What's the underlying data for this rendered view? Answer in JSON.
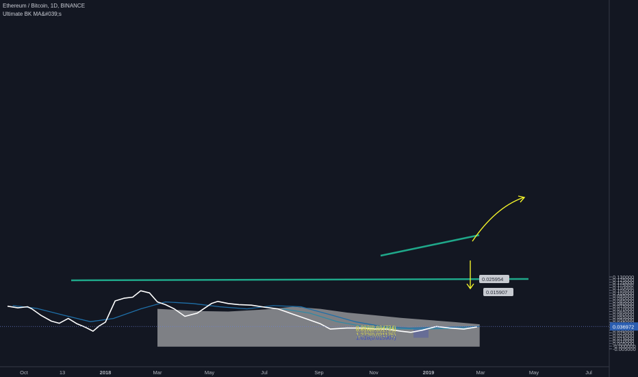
{
  "header": {
    "title": "Ethereum / Bitcoin, 1D, BINANCE",
    "indicator": "Ultimate BK MA&#039;s"
  },
  "colors": {
    "background": "#131722",
    "price_line": "#ffffff",
    "price_line_thin": "#9bb6e6",
    "ma_slow": "#1f6fa8",
    "ma_fast": "#2a8aa8",
    "shaded_area": "#d7d7d7",
    "support_line": "#1fa88a",
    "trend_line": "#1fa88a",
    "arrow": "#f2f22a",
    "fib_label": "#d9d950",
    "fib_ext_label": "#3a4bc4",
    "price_tag_bg": "#2a5db0"
  },
  "chart_data": {
    "type": "line",
    "y_axis": {
      "ticks": [
        "0.130000",
        "0.125000",
        "0.120000",
        "0.115000",
        "0.110000",
        "0.105000",
        "0.100000",
        "0.095000",
        "0.090000",
        "0.085000",
        "0.080000",
        "0.075000",
        "0.070000",
        "0.065000",
        "0.060000",
        "0.055000",
        "0.050000",
        "0.045000",
        "0.040000",
        "0.035000",
        "0.030000",
        "0.025000",
        "0.020000",
        "0.015000",
        "0.010000",
        "0.005000",
        "-0.000000",
        "-0.005000"
      ],
      "ylim": [
        -0.0055,
        0.1305
      ]
    },
    "x_axis": {
      "ticks": [
        "Oct",
        "13",
        "2018",
        "Mar",
        "May",
        "Jul",
        "Sep",
        "Nov",
        "2019",
        "Mar",
        "May",
        "Jul"
      ]
    },
    "series": [
      {
        "role": "price",
        "x": [
          "Sep 15 2017",
          "Sep 25 2017",
          "Oct 5 2017",
          "Oct 10 2017",
          "Oct 20 2017",
          "Nov 1 2017",
          "Nov 10 2017",
          "Nov 20 2017",
          "Nov 30 2017",
          "Dec 10 2017",
          "Dec 18 2017",
          "Dec 25 2017",
          "Jan 1 2018",
          "Jan 6 2018",
          "Jan 12 2018",
          "Jan 22 2018",
          "Feb 1 2018",
          "Feb 10 2018",
          "Feb 20 2018",
          "Mar 1 2018",
          "Mar 10 2018",
          "Mar 20 2018",
          "Apr 1 2018",
          "Apr 15 2018",
          "May 1 2018",
          "May 8 2018",
          "May 20 2018",
          "Jun 1 2018",
          "Jun 15 2018",
          "Jul 1 2018",
          "Jul 15 2018",
          "Aug 1 2018",
          "Aug 15 2018",
          "Sep 1 2018",
          "Sep 12 2018",
          "Oct 1 2018",
          "Oct 20 2018",
          "Nov 1 2018",
          "Nov 15 2018",
          "Dec 1 2018",
          "Dec 12 2018",
          "Dec 25 2018",
          "Jan 10 2019",
          "Jan 25 2019",
          "Feb 10 2019",
          "Feb 25 2019"
        ],
        "y": [
          0.075,
          0.072,
          0.074,
          0.07,
          0.058,
          0.047,
          0.043,
          0.052,
          0.042,
          0.035,
          0.028,
          0.038,
          0.045,
          0.063,
          0.085,
          0.09,
          0.092,
          0.104,
          0.1,
          0.083,
          0.078,
          0.07,
          0.056,
          0.062,
          0.08,
          0.084,
          0.08,
          0.078,
          0.077,
          0.073,
          0.07,
          0.06,
          0.052,
          0.042,
          0.032,
          0.034,
          0.034,
          0.032,
          0.032,
          0.028,
          0.026,
          0.03,
          0.037,
          0.034,
          0.032,
          0.036
        ]
      },
      {
        "role": "ma_slow",
        "x": [
          "Sep 20 2017",
          "Oct 15 2017",
          "Nov 15 2017",
          "Dec 15 2017",
          "Jan 10 2018",
          "Feb 10 2018",
          "Mar 10 2018",
          "Apr 10 2018",
          "May 10 2018",
          "Jun 10 2018",
          "Jul 10 2018",
          "Aug 10 2018",
          "Sep 10 2018",
          "Oct 10 2018",
          "Nov 10 2018",
          "Dec 10 2018",
          "Jan 10 2019",
          "Feb 10 2019",
          "Feb 28 2019"
        ],
        "y": [
          0.076,
          0.071,
          0.058,
          0.046,
          0.052,
          0.07,
          0.083,
          0.08,
          0.074,
          0.07,
          0.076,
          0.074,
          0.06,
          0.046,
          0.037,
          0.034,
          0.035,
          0.036,
          0.037
        ]
      },
      {
        "role": "ma_fast",
        "x": [
          "Jul 20 2018",
          "Aug 20 2018",
          "Sep 20 2018",
          "Oct 20 2018",
          "Nov 20 2018",
          "Dec 20 2018",
          "Jan 20 2019",
          "Feb 20 2019"
        ],
        "y": [
          0.07,
          0.062,
          0.046,
          0.037,
          0.033,
          0.032,
          0.033,
          0.034
        ]
      }
    ],
    "last_price": "0.036972",
    "fib_levels": [
      {
        "label": "0.382(0.034724)",
        "value": 0.034724
      },
      {
        "label": "0.618(0.031731)",
        "value": 0.031731
      },
      {
        "label": "1.272(0.021175)",
        "value": 0.021175
      },
      {
        "label": "1.618(0.015907)",
        "value": 0.015907
      }
    ],
    "price_tags": [
      "0.025954",
      "0.015907"
    ],
    "grid": false,
    "legend": "none"
  }
}
